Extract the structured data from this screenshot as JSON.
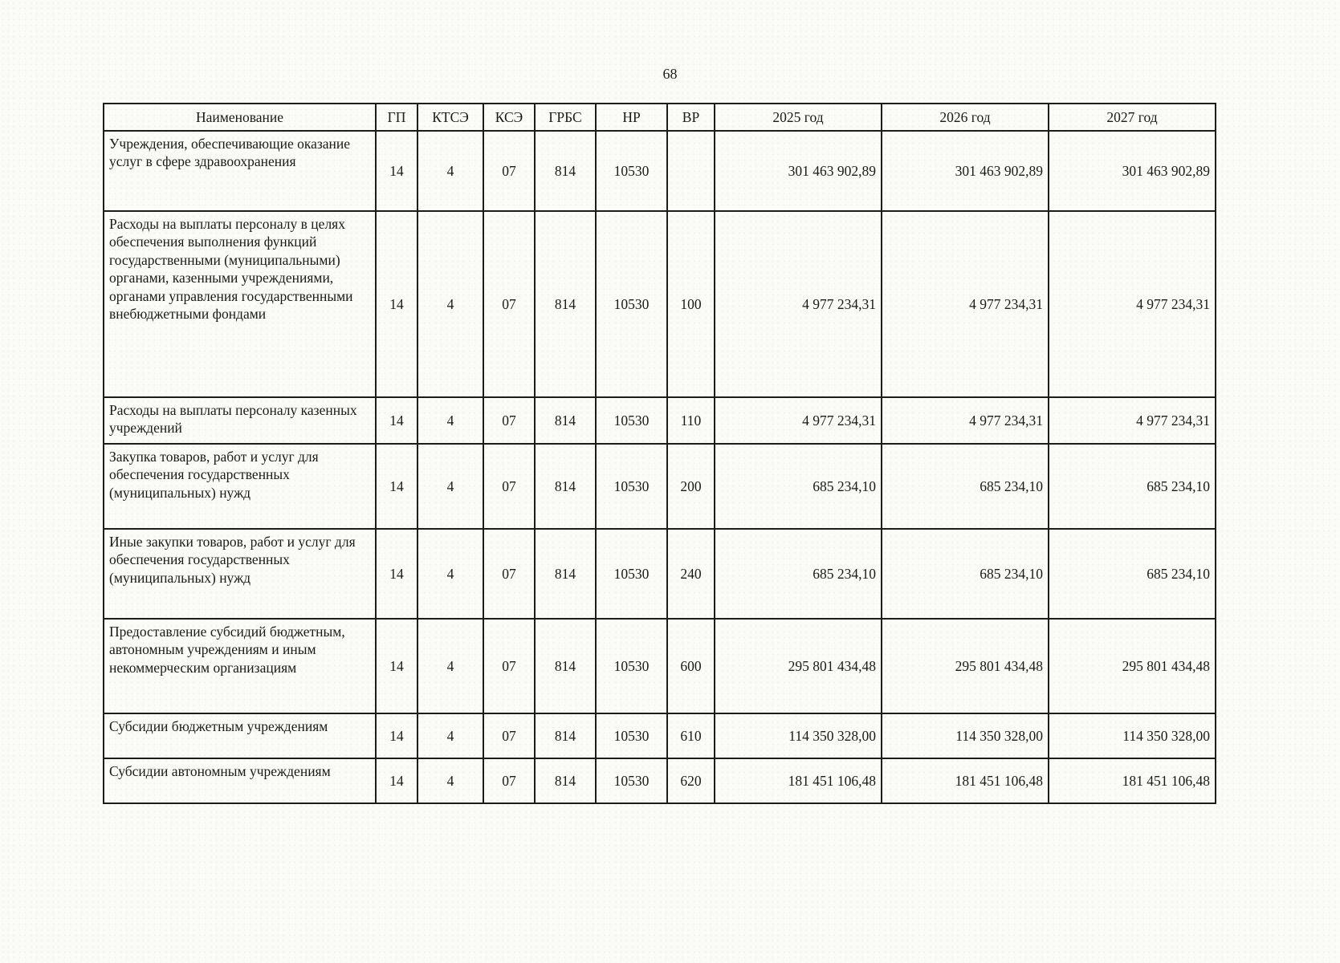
{
  "page": {
    "number": "68"
  },
  "table": {
    "headers": {
      "name": "Наименование",
      "gp": "ГП",
      "ktse": "КТСЭ",
      "kse": "КСЭ",
      "grbs": "ГРБС",
      "nr": "НР",
      "vr": "ВР",
      "y2025": "2025 год",
      "y2026": "2026 год",
      "y2027": "2027 год"
    },
    "rows": [
      {
        "name": "Учреждения, обеспечивающие оказание услуг в сфере здравоохранения",
        "gp": "14",
        "ktse": "4",
        "kse": "07",
        "grbs": "814",
        "nr": "10530",
        "vr": "",
        "y2025": "301 463 902,89",
        "y2026": "301 463 902,89",
        "y2027": "301 463 902,89"
      },
      {
        "name": "Расходы на выплаты персоналу в целях обеспечения выполнения функций государственными (муниципальными) органами, казенными учреждениями, органами управления государственными внебюджетными фондами",
        "gp": "14",
        "ktse": "4",
        "kse": "07",
        "grbs": "814",
        "nr": "10530",
        "vr": "100",
        "y2025": "4 977 234,31",
        "y2026": "4 977 234,31",
        "y2027": "4 977 234,31"
      },
      {
        "name": "Расходы на выплаты персоналу казенных учреждений",
        "gp": "14",
        "ktse": "4",
        "kse": "07",
        "grbs": "814",
        "nr": "10530",
        "vr": "110",
        "y2025": "4 977 234,31",
        "y2026": "4 977 234,31",
        "y2027": "4 977 234,31"
      },
      {
        "name": "Закупка товаров, работ и услуг для обеспечения государственных (муниципальных) нужд",
        "gp": "14",
        "ktse": "4",
        "kse": "07",
        "grbs": "814",
        "nr": "10530",
        "vr": "200",
        "y2025": "685 234,10",
        "y2026": "685 234,10",
        "y2027": "685 234,10"
      },
      {
        "name": "Иные закупки товаров, работ и услуг для обеспечения государственных (муниципальных) нужд",
        "gp": "14",
        "ktse": "4",
        "kse": "07",
        "grbs": "814",
        "nr": "10530",
        "vr": "240",
        "y2025": "685 234,10",
        "y2026": "685 234,10",
        "y2027": "685 234,10"
      },
      {
        "name": "Предоставление субсидий бюджетным, автономным учреждениям и иным некоммерческим организациям",
        "gp": "14",
        "ktse": "4",
        "kse": "07",
        "grbs": "814",
        "nr": "10530",
        "vr": "600",
        "y2025": "295 801 434,48",
        "y2026": "295 801 434,48",
        "y2027": "295 801 434,48"
      },
      {
        "name": "Субсидии бюджетным учреждениям",
        "gp": "14",
        "ktse": "4",
        "kse": "07",
        "grbs": "814",
        "nr": "10530",
        "vr": "610",
        "y2025": "114 350 328,00",
        "y2026": "114 350 328,00",
        "y2027": "114 350 328,00"
      },
      {
        "name": "Субсидии автономным учреждениям",
        "gp": "14",
        "ktse": "4",
        "kse": "07",
        "grbs": "814",
        "nr": "10530",
        "vr": "620",
        "y2025": "181 451 106,48",
        "y2026": "181 451 106,48",
        "y2027": "181 451 106,48"
      }
    ]
  }
}
